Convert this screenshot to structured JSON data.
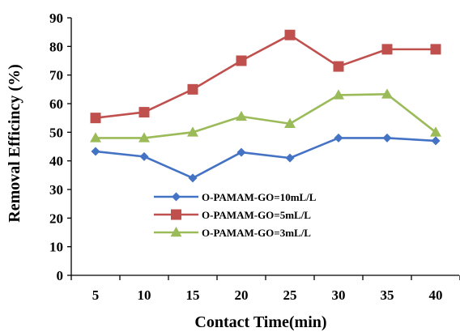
{
  "chart_data": {
    "type": "line",
    "title": "",
    "xlabel": "Contact Time(min)",
    "ylabel": "Removal Efficincy (%)",
    "categories": [
      "5",
      "10",
      "15",
      "20",
      "25",
      "30",
      "35",
      "40"
    ],
    "ylim": [
      0,
      90
    ],
    "yticks": [
      0,
      10,
      20,
      30,
      40,
      50,
      60,
      70,
      80,
      90
    ],
    "grid": false,
    "legend_position": "lower-center",
    "series": [
      {
        "name": "O-PAMAM-GO=10mL/L",
        "color": "#4472C4",
        "marker": "diamond",
        "values": [
          43.3,
          41.5,
          34,
          43,
          41,
          48,
          48,
          47
        ]
      },
      {
        "name": "O-PAMAM-GO=5mL/L",
        "color": "#C0504D",
        "marker": "square",
        "values": [
          55,
          57,
          65,
          75,
          84,
          73,
          79,
          79
        ]
      },
      {
        "name": "O-PAMAM-GO=3mL/L",
        "color": "#9BBB59",
        "marker": "triangle",
        "values": [
          48,
          48,
          50,
          55.5,
          53,
          63,
          63.3,
          50
        ]
      }
    ]
  }
}
